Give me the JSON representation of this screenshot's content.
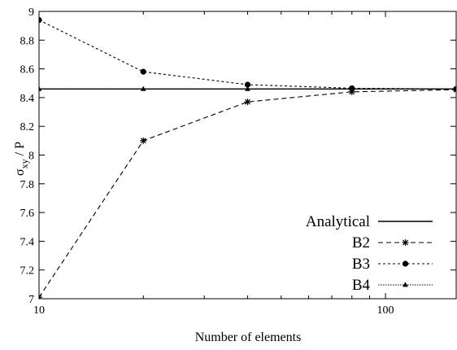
{
  "chart_data": {
    "type": "line",
    "title": "",
    "xlabel": "Number of elements",
    "ylabel": "σ",
    "ylabel_sub": "xy",
    "ylabel_suffix": " / P",
    "xscale": "log",
    "xlim": [
      10,
      160
    ],
    "ylim": [
      7,
      9
    ],
    "x_ticks": [
      10,
      100
    ],
    "x_tick_labels": [
      "10",
      "100"
    ],
    "y_ticks": [
      7,
      7.2,
      7.4,
      7.6,
      7.8,
      8,
      8.2,
      8.4,
      8.6,
      8.8,
      9
    ],
    "y_tick_labels": [
      "7",
      "7.2",
      "7.4",
      "7.6",
      "7.8",
      "8",
      "8.2",
      "8.4",
      "8.6",
      "8.8",
      "9"
    ],
    "grid": false,
    "legend_position": "bottom-right",
    "series": [
      {
        "name": "Analytical",
        "style": "solid",
        "marker": "none",
        "x": [
          10,
          160
        ],
        "y": [
          8.46,
          8.46
        ]
      },
      {
        "name": "B2",
        "style": "dashed",
        "marker": "asterisk",
        "x": [
          10,
          20,
          40,
          80,
          160
        ],
        "y": [
          7.01,
          8.1,
          8.37,
          8.44,
          8.455
        ]
      },
      {
        "name": "B3",
        "style": "dotted",
        "marker": "circle",
        "x": [
          10,
          20,
          40,
          80,
          160
        ],
        "y": [
          8.94,
          8.58,
          8.49,
          8.465,
          8.46
        ]
      },
      {
        "name": "B4",
        "style": "fine-dotted",
        "marker": "triangle",
        "x": [
          10,
          20,
          40,
          80,
          160
        ],
        "y": [
          8.46,
          8.46,
          8.46,
          8.46,
          8.46
        ]
      }
    ]
  }
}
